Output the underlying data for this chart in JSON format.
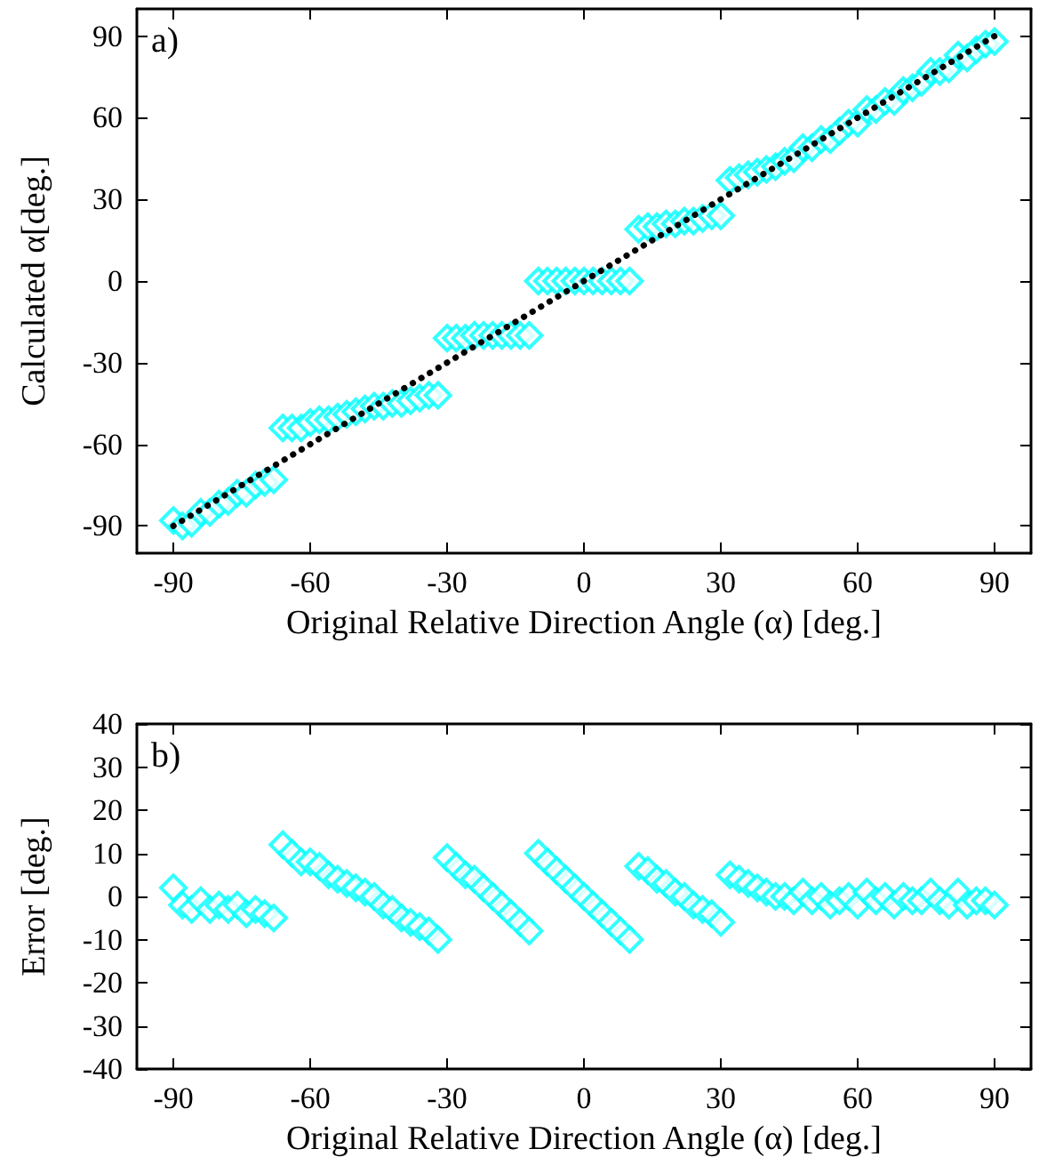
{
  "chart_data": [
    {
      "type": "scatter",
      "annotations": [
        "a)"
      ],
      "xlabel": "Original Relative Direction Angle (α) [deg.]",
      "ylabel": "Calculated α[deg.]",
      "x": [
        -90,
        -88,
        -86,
        -84,
        -82,
        -80,
        -78,
        -76,
        -74,
        -72,
        -70,
        -68,
        -66,
        -64,
        -62,
        -60,
        -58,
        -56,
        -54,
        -52,
        -50,
        -48,
        -46,
        -44,
        -42,
        -40,
        -38,
        -36,
        -34,
        -32,
        -30,
        -28,
        -26,
        -24,
        -22,
        -20,
        -18,
        -16,
        -14,
        -12,
        -10,
        -8,
        -6,
        -4,
        -2,
        0,
        2,
        4,
        6,
        8,
        10,
        12,
        14,
        16,
        18,
        20,
        22,
        24,
        26,
        28,
        30,
        32,
        34,
        36,
        38,
        40,
        42,
        44,
        46,
        48,
        50,
        52,
        54,
        56,
        58,
        60,
        62,
        64,
        66,
        68,
        70,
        72,
        74,
        76,
        78,
        80,
        82,
        84,
        86,
        88,
        90
      ],
      "series": [
        {
          "color": "#00ffff",
          "marker": "diamond",
          "values": [
            -88,
            -90,
            -89,
            -85,
            -85,
            -82,
            -81,
            -78,
            -78,
            -75,
            -74,
            -73,
            -54,
            -54,
            -54,
            -52,
            -51,
            -51,
            -50,
            -49,
            -48,
            -47,
            -46,
            -46,
            -45,
            -45,
            -44,
            -43,
            -42,
            -42,
            -21,
            -21,
            -21,
            -20,
            -20,
            -20,
            -20,
            -20,
            -20,
            -20,
            0,
            0,
            0,
            0,
            0,
            0,
            0,
            0,
            0,
            0,
            0,
            19,
            20,
            20,
            21,
            21,
            22,
            22,
            23,
            24,
            24,
            37,
            38,
            39,
            40,
            41,
            42,
            44,
            45,
            49,
            49,
            52,
            52,
            55,
            58,
            58,
            63,
            63,
            66,
            66,
            70,
            71,
            73,
            77,
            77,
            78,
            83,
            82,
            85,
            87,
            88
          ]
        },
        {
          "type": "line",
          "color": "#000000",
          "marker": "none",
          "line_style": "dotted",
          "x": [
            -90,
            90
          ],
          "values": [
            -90,
            90
          ]
        }
      ],
      "xlim": [
        -98,
        98
      ],
      "xticks": [
        -90,
        -60,
        -30,
        0,
        30,
        60,
        90
      ],
      "ylim": [
        -100,
        100
      ],
      "yticks": [
        -90,
        -60,
        -30,
        0,
        30,
        60,
        90
      ]
    },
    {
      "type": "scatter",
      "annotations": [
        "b)"
      ],
      "xlabel": "Original Relative Direction Angle (α) [deg.]",
      "ylabel": "Error [deg.]",
      "x": [
        -90,
        -88,
        -86,
        -84,
        -82,
        -80,
        -78,
        -76,
        -74,
        -72,
        -70,
        -68,
        -66,
        -64,
        -62,
        -60,
        -58,
        -56,
        -54,
        -52,
        -50,
        -48,
        -46,
        -44,
        -42,
        -40,
        -38,
        -36,
        -34,
        -32,
        -30,
        -28,
        -26,
        -24,
        -22,
        -20,
        -18,
        -16,
        -14,
        -12,
        -10,
        -8,
        -6,
        -4,
        -2,
        0,
        2,
        4,
        6,
        8,
        10,
        12,
        14,
        16,
        18,
        20,
        22,
        24,
        26,
        28,
        30,
        32,
        34,
        36,
        38,
        40,
        42,
        44,
        46,
        48,
        50,
        52,
        54,
        56,
        58,
        60,
        62,
        64,
        66,
        68,
        70,
        72,
        74,
        76,
        78,
        80,
        82,
        84,
        86,
        88,
        90
      ],
      "series": [
        {
          "color": "#00ffff",
          "marker": "diamond",
          "values": [
            2,
            -2,
            -3,
            -1,
            -3,
            -2,
            -3,
            -2,
            -4,
            -3,
            -4,
            -5,
            12,
            10,
            8,
            8,
            7,
            5,
            4,
            3,
            2,
            1,
            0,
            -2,
            -3,
            -5,
            -6,
            -7,
            -8,
            -10,
            9,
            7,
            5,
            4,
            2,
            0,
            -2,
            -4,
            -6,
            -8,
            10,
            8,
            6,
            4,
            2,
            0,
            -2,
            -4,
            -6,
            -8,
            -10,
            7,
            6,
            4,
            3,
            1,
            0,
            -2,
            -3,
            -4,
            -6,
            5,
            4,
            3,
            2,
            1,
            0,
            0,
            -1,
            1,
            -1,
            0,
            -2,
            -1,
            0,
            -2,
            1,
            -1,
            0,
            -2,
            0,
            -1,
            -1,
            1,
            -1,
            -2,
            1,
            -2,
            -1,
            -1,
            -2
          ]
        }
      ],
      "xlim": [
        -98,
        98
      ],
      "xticks": [
        -90,
        -60,
        -30,
        0,
        30,
        60,
        90
      ],
      "ylim": [
        -40,
        40
      ],
      "yticks": [
        -40,
        -30,
        -20,
        -10,
        0,
        10,
        20,
        30,
        40
      ]
    }
  ]
}
